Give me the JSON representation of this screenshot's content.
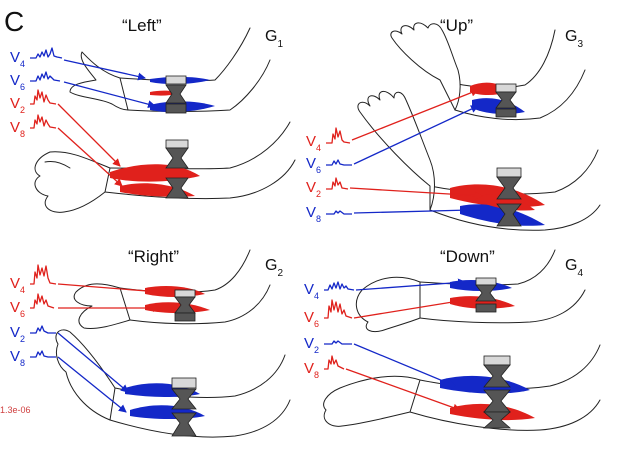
{
  "figure": {
    "panel_letter": "C",
    "scale_label": "1.3e-06",
    "colors": {
      "red": "#e0211c",
      "blue": "#1428c8",
      "outline": "#222222",
      "scale": "#d04040"
    }
  },
  "panels": [
    {
      "id": "left",
      "title": "“Left”",
      "gesture": "G",
      "gesture_num": "1",
      "signals": [
        {
          "name": "V",
          "sub": "4",
          "color": "blue"
        },
        {
          "name": "V",
          "sub": "6",
          "color": "blue"
        },
        {
          "name": "V",
          "sub": "2",
          "color": "red"
        },
        {
          "name": "V",
          "sub": "8",
          "color": "red"
        }
      ]
    },
    {
      "id": "up",
      "title": "“Up”",
      "gesture": "G",
      "gesture_num": "3",
      "signals": [
        {
          "name": "V",
          "sub": "4",
          "color": "red"
        },
        {
          "name": "V",
          "sub": "6",
          "color": "blue"
        },
        {
          "name": "V",
          "sub": "2",
          "color": "red"
        },
        {
          "name": "V",
          "sub": "8",
          "color": "blue"
        }
      ]
    },
    {
      "id": "right",
      "title": "“Right”",
      "gesture": "G",
      "gesture_num": "2",
      "signals": [
        {
          "name": "V",
          "sub": "4",
          "color": "red"
        },
        {
          "name": "V",
          "sub": "6",
          "color": "red"
        },
        {
          "name": "V",
          "sub": "2",
          "color": "blue"
        },
        {
          "name": "V",
          "sub": "8",
          "color": "blue"
        }
      ]
    },
    {
      "id": "down",
      "title": "“Down”",
      "gesture": "G",
      "gesture_num": "4",
      "signals": [
        {
          "name": "V",
          "sub": "4",
          "color": "blue"
        },
        {
          "name": "V",
          "sub": "6",
          "color": "red"
        },
        {
          "name": "V",
          "sub": "2",
          "color": "blue"
        },
        {
          "name": "V",
          "sub": "8",
          "color": "red"
        }
      ]
    }
  ]
}
